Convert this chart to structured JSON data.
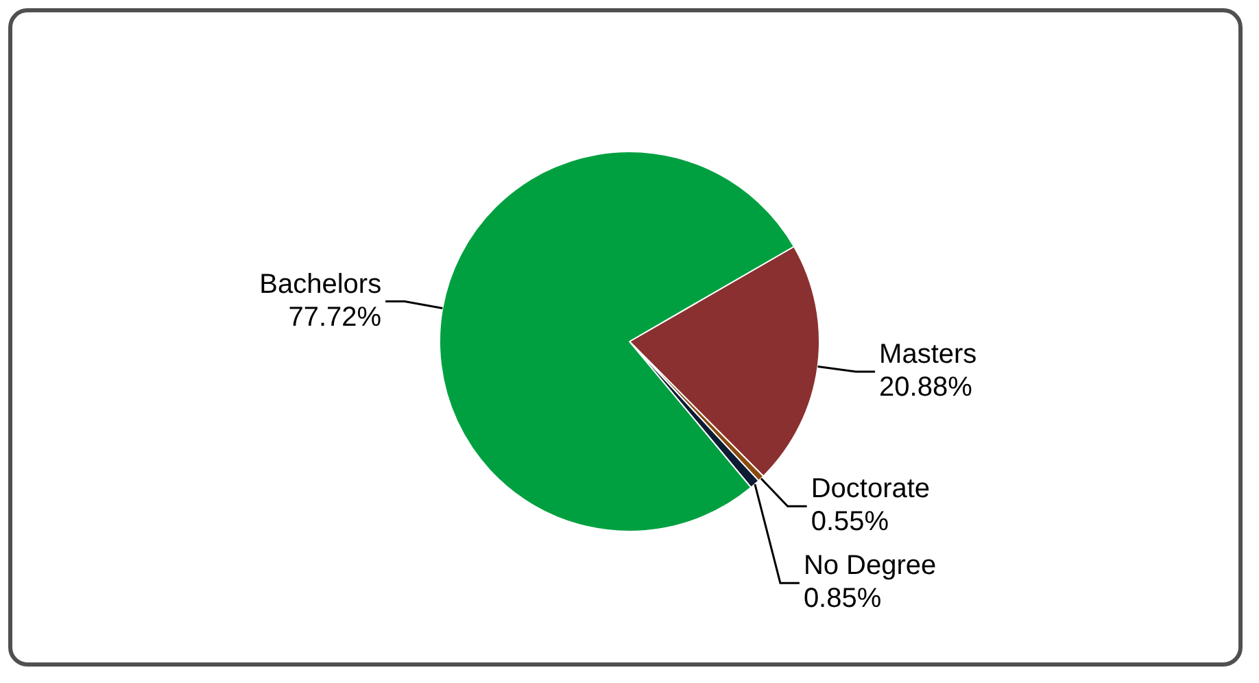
{
  "chart_data": {
    "type": "pie",
    "categories": [
      "Masters",
      "Doctorate",
      "No Degree",
      "Bachelors"
    ],
    "values": [
      20.88,
      0.55,
      0.85,
      77.72
    ],
    "colors": [
      "#8b3030",
      "#8a4a10",
      "#0d1b33",
      "#00a040"
    ],
    "value_labels": [
      "20.88%",
      "0.55%",
      "0.85%",
      "77.72%"
    ]
  }
}
